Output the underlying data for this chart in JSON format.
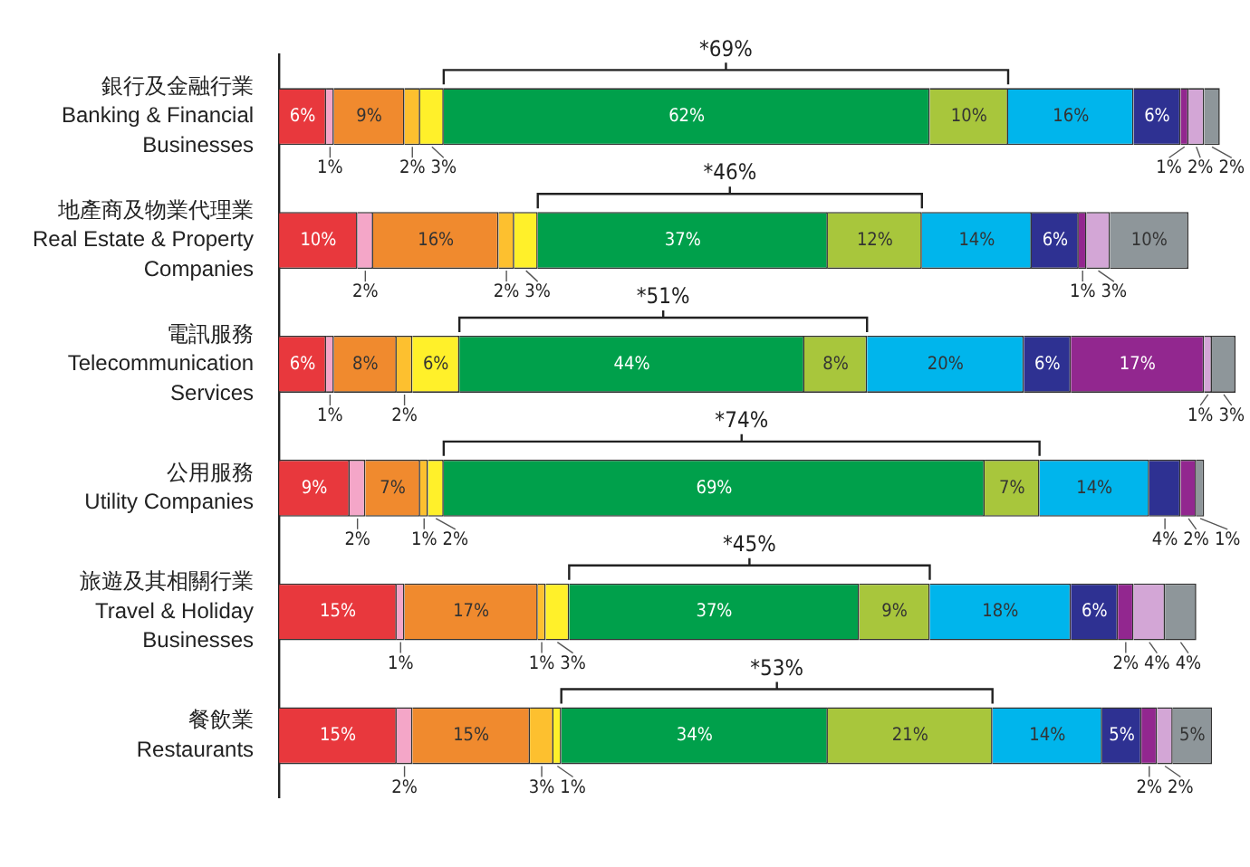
{
  "chart_data": {
    "type": "bar",
    "orientation": "horizontal",
    "stacked": true,
    "tick_labels": "y",
    "legend": false,
    "grid": false,
    "categories": [
      "銀行及金融行業\nBanking & Financial\nBusinesses",
      "地產商及物業代理業\nReal Estate & Property\nCompanies",
      "電訊服務\nTelecommunication\nServices",
      "公用服務\nUtility Companies",
      "旅遊及其相關行業\nTravel & Holiday\nBusinesses",
      "餐飲業\nRestaurants"
    ],
    "xlim": [
      0,
      122
    ],
    "series": [
      {
        "color": "#e8383d",
        "values": [
          6,
          10,
          6,
          9,
          15,
          15
        ],
        "value_labels": [
          "6%",
          "10%",
          "6%",
          "9%",
          "15%",
          "15%"
        ]
      },
      {
        "color": "#f4a6c8",
        "values": [
          1,
          2,
          1,
          2,
          1,
          2
        ],
        "value_labels": [
          "1%",
          "2%",
          "1%",
          "2%",
          "1%",
          "2%"
        ]
      },
      {
        "color": "#f08a2e",
        "values": [
          9,
          16,
          8,
          7,
          17,
          15
        ],
        "value_labels": [
          "9%",
          "16%",
          "8%",
          "7%",
          "17%",
          "15%"
        ]
      },
      {
        "color": "#fdc02f",
        "values": [
          2,
          2,
          2,
          1,
          1,
          3
        ],
        "value_labels": [
          "2%",
          "2%",
          "2%",
          "1%",
          "1%",
          "3%"
        ]
      },
      {
        "color": "#fff02a",
        "values": [
          3,
          3,
          6,
          2,
          3,
          1
        ],
        "value_labels": [
          "3%",
          "3%",
          "6%",
          "2%",
          "3%",
          "1%"
        ]
      },
      {
        "color": "#00a04b",
        "values": [
          62,
          37,
          44,
          69,
          37,
          34
        ],
        "value_labels": [
          "62%",
          "37%",
          "44%",
          "69%",
          "37%",
          "34%"
        ]
      },
      {
        "color": "#a8c63c",
        "values": [
          10,
          12,
          8,
          7,
          9,
          21
        ],
        "value_labels": [
          "10%",
          "12%",
          "8%",
          "7%",
          "9%",
          "21%"
        ]
      },
      {
        "color": "#00b5ec",
        "values": [
          16,
          14,
          20,
          14,
          18,
          14
        ],
        "value_labels": [
          "16%",
          "14%",
          "20%",
          "14%",
          "18%",
          "14%"
        ]
      },
      {
        "color": "#2e3192",
        "values": [
          6,
          6,
          6,
          4,
          6,
          5
        ],
        "value_labels": [
          "6%",
          "6%",
          "6%",
          "4%",
          "6%",
          "5%"
        ]
      },
      {
        "color": "#92278f",
        "values": [
          1,
          1,
          17,
          2,
          2,
          2
        ],
        "value_labels": [
          "1%",
          "1%",
          "17%",
          "2%",
          "2%",
          "2%"
        ]
      },
      {
        "color": "#d3a6d6",
        "values": [
          2,
          3,
          1,
          null,
          4,
          2
        ],
        "value_labels": [
          "2%",
          "3%",
          "1%",
          null,
          "4%",
          "2%"
        ]
      },
      {
        "color": "#8e969a",
        "values": [
          2,
          10,
          3,
          1,
          4,
          5
        ],
        "value_labels": [
          "2%",
          "10%",
          "3%",
          "1%",
          "4%",
          "5%"
        ]
      }
    ],
    "annotations": [
      "*69%",
      "*46%",
      "*51%",
      "*74%",
      "*45%",
      "*53%"
    ]
  }
}
